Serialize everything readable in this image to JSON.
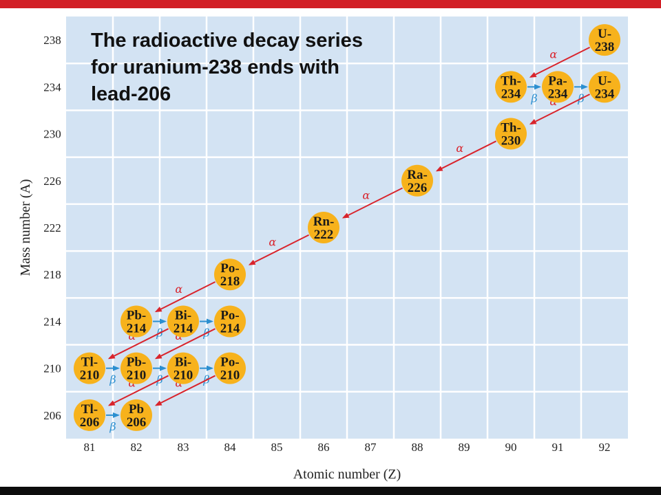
{
  "title_lines": [
    "The radioactive decay series",
    "for uranium-238 ends with",
    "lead-206"
  ],
  "x_axis": {
    "title": "Atomic number (Z)",
    "ticks": [
      "81",
      "82",
      "83",
      "84",
      "85",
      "86",
      "87",
      "88",
      "89",
      "90",
      "91",
      "92"
    ]
  },
  "y_axis": {
    "title": "Mass number (A)",
    "ticks": [
      "206",
      "210",
      "214",
      "218",
      "222",
      "226",
      "230",
      "234",
      "238"
    ]
  },
  "nuclides": [
    {
      "id": "U238",
      "line1": "U-",
      "line2": "238",
      "Z": 92,
      "A": 238
    },
    {
      "id": "Th234",
      "line1": "Th-",
      "line2": "234",
      "Z": 90,
      "A": 234
    },
    {
      "id": "Pa234",
      "line1": "Pa-",
      "line2": "234",
      "Z": 91,
      "A": 234
    },
    {
      "id": "U234",
      "line1": "U-",
      "line2": "234",
      "Z": 92,
      "A": 234
    },
    {
      "id": "Th230",
      "line1": "Th-",
      "line2": "230",
      "Z": 90,
      "A": 230
    },
    {
      "id": "Ra226",
      "line1": "Ra-",
      "line2": "226",
      "Z": 88,
      "A": 226
    },
    {
      "id": "Rn222",
      "line1": "Rn-",
      "line2": "222",
      "Z": 86,
      "A": 222
    },
    {
      "id": "Po218",
      "line1": "Po-",
      "line2": "218",
      "Z": 84,
      "A": 218
    },
    {
      "id": "Pb214",
      "line1": "Pb-",
      "line2": "214",
      "Z": 82,
      "A": 214
    },
    {
      "id": "Bi214",
      "line1": "Bi-",
      "line2": "214",
      "Z": 83,
      "A": 214
    },
    {
      "id": "Po214",
      "line1": "Po-",
      "line2": "214",
      "Z": 84,
      "A": 214
    },
    {
      "id": "Tl210",
      "line1": "Tl-",
      "line2": "210",
      "Z": 81,
      "A": 210
    },
    {
      "id": "Pb210",
      "line1": "Pb-",
      "line2": "210",
      "Z": 82,
      "A": 210
    },
    {
      "id": "Bi210",
      "line1": "Bi-",
      "line2": "210",
      "Z": 83,
      "A": 210
    },
    {
      "id": "Po210",
      "line1": "Po-",
      "line2": "210",
      "Z": 84,
      "A": 210
    },
    {
      "id": "Tl206",
      "line1": "Tl-",
      "line2": "206",
      "Z": 81,
      "A": 206
    },
    {
      "id": "Pb206",
      "line1": "Pb",
      "line2": "206",
      "Z": 82,
      "A": 206
    }
  ],
  "decays": [
    {
      "from": "U238",
      "to": "Th234",
      "type": "alpha",
      "label": "α"
    },
    {
      "from": "Th234",
      "to": "Pa234",
      "type": "beta",
      "label": "β"
    },
    {
      "from": "Pa234",
      "to": "U234",
      "type": "beta",
      "label": "β"
    },
    {
      "from": "U234",
      "to": "Th230",
      "type": "alpha",
      "label": "α"
    },
    {
      "from": "Th230",
      "to": "Ra226",
      "type": "alpha",
      "label": "α"
    },
    {
      "from": "Ra226",
      "to": "Rn222",
      "type": "alpha",
      "label": "α"
    },
    {
      "from": "Rn222",
      "to": "Po218",
      "type": "alpha",
      "label": "α"
    },
    {
      "from": "Po218",
      "to": "Pb214",
      "type": "alpha",
      "label": "α"
    },
    {
      "from": "Pb214",
      "to": "Bi214",
      "type": "beta",
      "label": "β"
    },
    {
      "from": "Bi214",
      "to": "Po214",
      "type": "beta",
      "label": "β"
    },
    {
      "from": "Bi214",
      "to": "Tl210",
      "type": "alpha",
      "label": "α"
    },
    {
      "from": "Po214",
      "to": "Pb210",
      "type": "alpha",
      "label": "α"
    },
    {
      "from": "Tl210",
      "to": "Pb210",
      "type": "beta",
      "label": "β"
    },
    {
      "from": "Pb210",
      "to": "Bi210",
      "type": "beta",
      "label": "β"
    },
    {
      "from": "Bi210",
      "to": "Po210",
      "type": "beta",
      "label": "β"
    },
    {
      "from": "Bi210",
      "to": "Tl206",
      "type": "alpha",
      "label": "α"
    },
    {
      "from": "Po210",
      "to": "Pb206",
      "type": "alpha",
      "label": "α"
    },
    {
      "from": "Tl206",
      "to": "Pb206",
      "type": "beta",
      "label": "β"
    }
  ],
  "colors": {
    "plot_background": "#d3e3f3",
    "grid": "#ffffff",
    "nuclide_fill": "#f7b21c",
    "alpha_arrow": "#d9242c",
    "beta_arrow": "#2b8fd0",
    "top_bar": "#d21f26",
    "bottom_bar": "#0d0d0d"
  }
}
